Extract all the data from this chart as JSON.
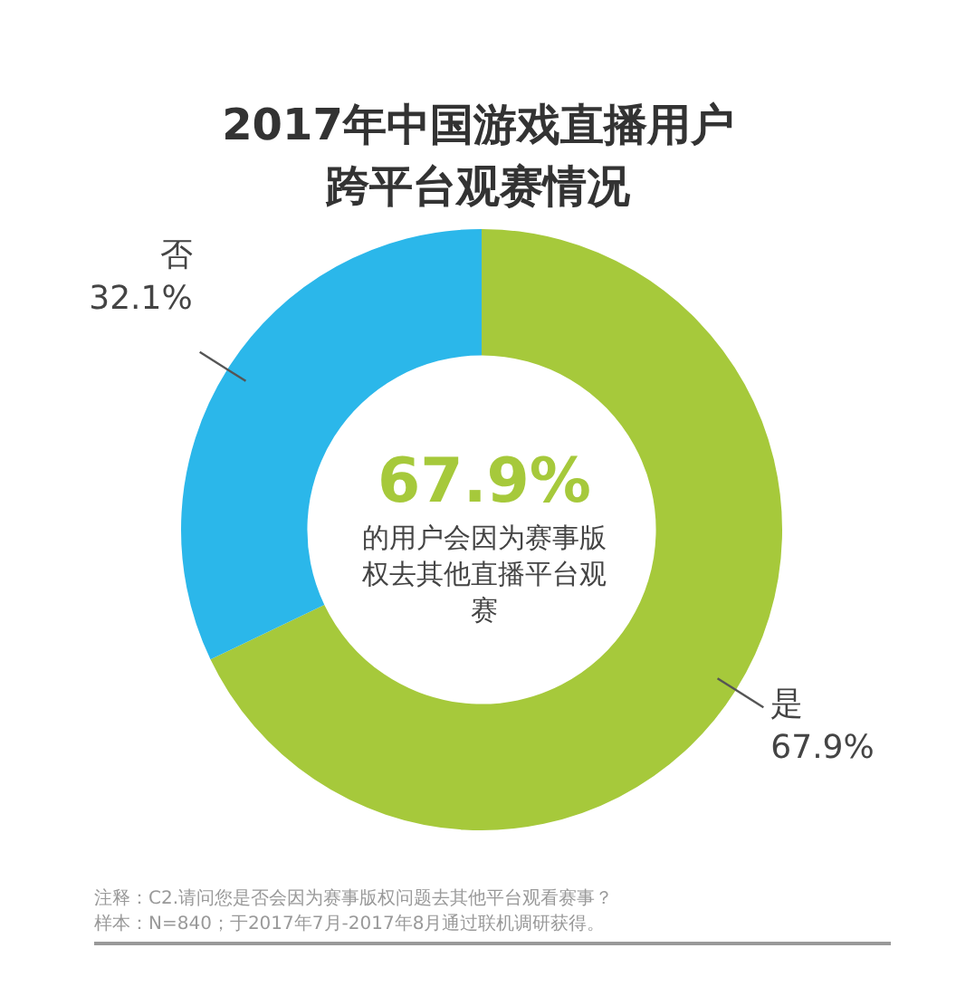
{
  "chart_data": {
    "type": "donut",
    "title": "2017年中国游戏直播用户跨平台观赛情况",
    "categories": [
      "是",
      "否"
    ],
    "values": [
      67.9,
      32.1
    ],
    "colors": [
      "#a6c93b",
      "#2bb7ea"
    ],
    "value_labels": [
      "67.9%",
      "32.1%"
    ],
    "legend": false,
    "annotations": [
      "67.9%",
      "的用户会因为赛事版权去其他直播平台观赛",
      "注释：C2.请问您是否会因为赛事版权问题去其他平台观看赛事？",
      "样本：N=840；于2017年7月-2017年8月通过联机调研获得。"
    ]
  }
}
